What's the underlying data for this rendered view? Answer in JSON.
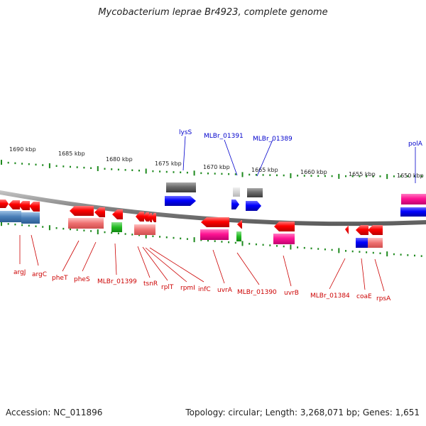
{
  "title": "Mycobacterium leprae Br4923, complete genome",
  "footer": {
    "accession": "Accession: NC_011896",
    "topology": "Topology: circular; Length: 3,268,071 bp; Genes: 1,651"
  },
  "colors": {
    "forward_gene": "#ff0000",
    "rna": "#ff1493",
    "pseudo": "#6b6b6b",
    "cds_blue": "#0000ff",
    "tick": "#1e8a1e",
    "label_reverse": "#cc0000",
    "label_forward": "#0000cc",
    "backbone": "#808080"
  },
  "scale_labels": [
    "1690 kbp",
    "1685 kbp",
    "1680 kbp",
    "1675 kbp",
    "1670 kbp",
    "1665 kbp",
    "1660 kbp",
    "1655 kbp",
    "1650 kbp"
  ],
  "top_gene_labels": [
    "lysS",
    "MLBr_01391",
    "MLBr_01389",
    "polA"
  ],
  "bottom_gene_labels": [
    "argJ",
    "argC",
    "pheT",
    "pheS",
    "MLBr_01399",
    "tsnR",
    "rplT",
    "rpmI",
    "infC",
    "uvrA",
    "MLBr_01390",
    "uvrB",
    "MLBr_01384",
    "coaE",
    "rpsA"
  ]
}
